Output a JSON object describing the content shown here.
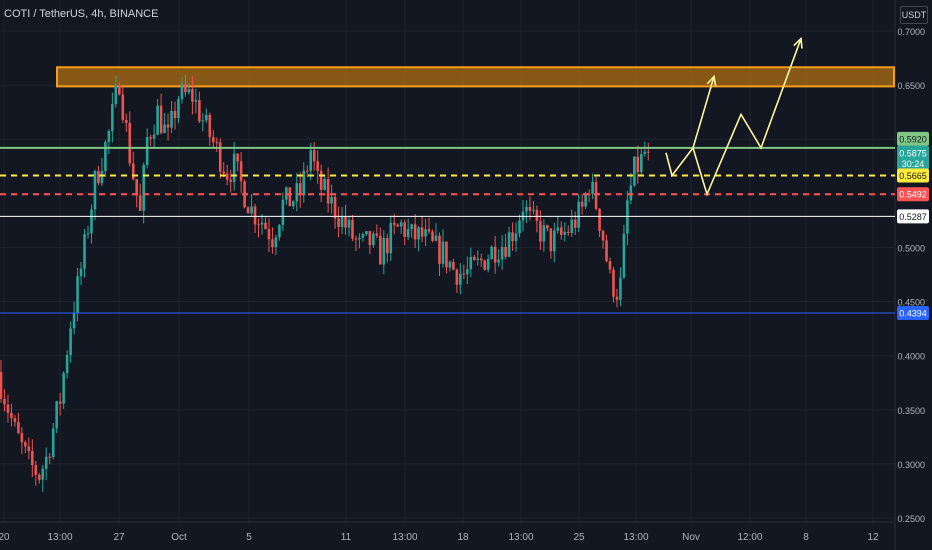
{
  "header": {
    "title": "COTI / TetherUS, 4h, BINANCE",
    "currency": "USDT"
  },
  "colors": {
    "background": "#131722",
    "up": "#26a69a",
    "down": "#ef5350",
    "grid": "#1e222d",
    "text": "#b2b5be",
    "zone": "#f59c1a"
  },
  "chart_data": {
    "type": "candlestick",
    "ylim": [
      0.245,
      0.72
    ],
    "y_ticks": [
      "0.7000",
      "0.6500",
      "0.6000",
      "0.5500",
      "0.5000",
      "0.4500",
      "0.4000",
      "0.3500",
      "0.3000",
      "0.2500"
    ],
    "y_tick_values": [
      0.7,
      0.65,
      0.6,
      0.55,
      0.5,
      0.45,
      0.4,
      0.35,
      0.3,
      0.25
    ],
    "x_ticks": [
      "20",
      "13:00",
      "27",
      "Oct",
      "5",
      "11",
      "13:00",
      "18",
      "13:00",
      "25",
      "13:00",
      "Nov",
      "12:00",
      "8",
      "12"
    ],
    "resistance_zone": {
      "low": 0.6488,
      "high": 0.6665,
      "color": "#f59c1a"
    },
    "levels": [
      {
        "name": "green-level",
        "value": 0.592,
        "label": "0.5920",
        "color": "#81c784",
        "style": "solid",
        "badge_text_color": "#131722"
      },
      {
        "name": "current-price",
        "value": 0.5875,
        "label": "0.5875",
        "sub_label": "30:24",
        "color": "#26a69a",
        "style": "none",
        "badge_text_color": "#ffffff"
      },
      {
        "name": "yellow-level",
        "value": 0.5665,
        "label": "0.5665",
        "color": "#ffeb3b",
        "style": "dashed",
        "badge_text_color": "#131722"
      },
      {
        "name": "red-level",
        "value": 0.5492,
        "label": "0.5492",
        "color": "#ff5252",
        "style": "dashed",
        "badge_text_color": "#ffffff"
      },
      {
        "name": "white-level",
        "value": 0.5287,
        "label": "0.5287",
        "color": "#ffffff",
        "style": "solid",
        "badge_text_color": "#131722"
      },
      {
        "name": "blue-level",
        "value": 0.4394,
        "label": "0.4394",
        "color": "#2962ff",
        "style": "solid",
        "badge_text_color": "#ffffff"
      }
    ],
    "projection": {
      "color": "#fff59d",
      "paths": [
        [
          [
            0,
            0.5875
          ],
          [
            1,
            0.5665
          ],
          [
            2,
            0.592
          ],
          [
            3,
            0.5492
          ],
          [
            4,
            0.623
          ],
          [
            5,
            0.592
          ],
          [
            6,
            0.693
          ]
        ],
        [
          [
            2,
            0.592
          ],
          [
            3,
            0.658
          ]
        ]
      ]
    },
    "price_path": [
      [
        0,
        0.385
      ],
      [
        5,
        0.33
      ],
      [
        9,
        0.3
      ],
      [
        12,
        0.29
      ],
      [
        14,
        0.305
      ],
      [
        18,
        0.36
      ],
      [
        21,
        0.43
      ],
      [
        24,
        0.48
      ],
      [
        28,
        0.56
      ],
      [
        32,
        0.605
      ],
      [
        35,
        0.655
      ],
      [
        38,
        0.585
      ],
      [
        41,
        0.53
      ],
      [
        43,
        0.6
      ],
      [
        46,
        0.625
      ],
      [
        49,
        0.6
      ],
      [
        52,
        0.64
      ],
      [
        56,
        0.64
      ],
      [
        60,
        0.61
      ],
      [
        63,
        0.59
      ],
      [
        66,
        0.57
      ],
      [
        68,
        0.575
      ],
      [
        71,
        0.55
      ],
      [
        73,
        0.535
      ],
      [
        76,
        0.525
      ],
      [
        79,
        0.51
      ],
      [
        82,
        0.54
      ],
      [
        85,
        0.545
      ],
      [
        87,
        0.55
      ],
      [
        89,
        0.575
      ],
      [
        90,
        0.59
      ],
      [
        92,
        0.56
      ],
      [
        95,
        0.545
      ],
      [
        98,
        0.53
      ],
      [
        101,
        0.515
      ],
      [
        104,
        0.5
      ],
      [
        107,
        0.505
      ],
      [
        110,
        0.495
      ],
      [
        113,
        0.51
      ],
      [
        116,
        0.52
      ],
      [
        119,
        0.51
      ],
      [
        122,
        0.51
      ],
      [
        125,
        0.5
      ],
      [
        128,
        0.495
      ],
      [
        131,
        0.48
      ],
      [
        134,
        0.475
      ],
      [
        137,
        0.48
      ],
      [
        140,
        0.49
      ],
      [
        143,
        0.5
      ],
      [
        146,
        0.505
      ],
      [
        149,
        0.52
      ],
      [
        151,
        0.54
      ],
      [
        153,
        0.525
      ],
      [
        156,
        0.515
      ],
      [
        159,
        0.505
      ],
      [
        162,
        0.51
      ],
      [
        165,
        0.52
      ],
      [
        168,
        0.535
      ],
      [
        170,
        0.56
      ],
      [
        172,
        0.54
      ],
      [
        174,
        0.51
      ],
      [
        176,
        0.47
      ],
      [
        178,
        0.46
      ],
      [
        179,
        0.465
      ],
      [
        181,
        0.54
      ],
      [
        183,
        0.57
      ],
      [
        185,
        0.58
      ],
      [
        186,
        0.5875
      ]
    ]
  }
}
